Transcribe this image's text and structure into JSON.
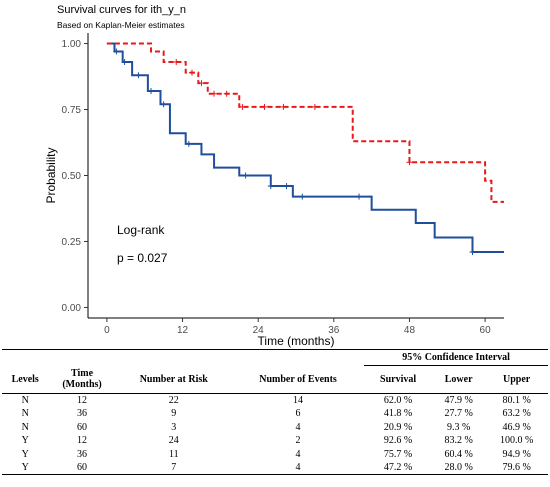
{
  "chart_data": {
    "type": "line",
    "title": "Survival curves for ith_y_n",
    "subtitle": "Based on Kaplan-Meier estimates",
    "xlabel": "Time (months)",
    "ylabel": "Probability",
    "xlim": [
      -3,
      63
    ],
    "ylim": [
      -0.04,
      1.04
    ],
    "xticks": [
      0,
      12,
      24,
      36,
      48,
      60
    ],
    "yticks": [
      0.0,
      0.25,
      0.5,
      0.75,
      1.0
    ],
    "ytick_labels": [
      "0.00",
      "0.25",
      "0.50",
      "0.75",
      "1.00"
    ],
    "grid": false,
    "annotations": [
      "Log-rank",
      "p = 0.027"
    ],
    "series": [
      {
        "color": "#1f4e9c",
        "style": "solid",
        "steps": [
          [
            0,
            1.0
          ],
          [
            1.2,
            0.97
          ],
          [
            2.5,
            0.93
          ],
          [
            4,
            0.88
          ],
          [
            6.5,
            0.82
          ],
          [
            8.5,
            0.77
          ],
          [
            10,
            0.66
          ],
          [
            12.5,
            0.62
          ],
          [
            15,
            0.58
          ],
          [
            17,
            0.53
          ],
          [
            21,
            0.5
          ],
          [
            26,
            0.46
          ],
          [
            29.5,
            0.42
          ],
          [
            42,
            0.37
          ],
          [
            49,
            0.32
          ],
          [
            52,
            0.265
          ],
          [
            58,
            0.21
          ],
          [
            63,
            0.21
          ]
        ],
        "censored": [
          [
            1.5,
            0.97
          ],
          [
            2.8,
            0.93
          ],
          [
            5,
            0.88
          ],
          [
            7,
            0.82
          ],
          [
            9,
            0.77
          ],
          [
            13,
            0.62
          ],
          [
            22,
            0.5
          ],
          [
            26,
            0.46
          ],
          [
            28.5,
            0.46
          ],
          [
            31,
            0.42
          ],
          [
            40,
            0.42
          ],
          [
            58,
            0.21
          ]
        ]
      },
      {
        "color": "#e8191b",
        "style": "dashed",
        "steps": [
          [
            0,
            1.0
          ],
          [
            7,
            0.97
          ],
          [
            9,
            0.93
          ],
          [
            12.5,
            0.89
          ],
          [
            14.5,
            0.85
          ],
          [
            16,
            0.81
          ],
          [
            20,
            0.81
          ],
          [
            21,
            0.76
          ],
          [
            33,
            0.76
          ],
          [
            39,
            0.63
          ],
          [
            48,
            0.55
          ],
          [
            60,
            0.48
          ],
          [
            61,
            0.4
          ],
          [
            63,
            0.4
          ]
        ],
        "censored": [
          [
            11,
            0.93
          ],
          [
            13.5,
            0.89
          ],
          [
            15,
            0.85
          ],
          [
            17,
            0.81
          ],
          [
            19,
            0.81
          ],
          [
            21.5,
            0.76
          ],
          [
            25,
            0.76
          ],
          [
            28,
            0.76
          ],
          [
            33,
            0.76
          ],
          [
            48,
            0.55
          ]
        ]
      }
    ]
  },
  "table": {
    "ci_header": "95% Confidence Interval",
    "headers": [
      "Levels",
      "Time\n(Months)",
      "Number at Risk",
      "Number of Events",
      "Survival",
      "Lower",
      "Upper"
    ],
    "rows": [
      [
        "N",
        "12",
        "22",
        "14",
        "62.0 %",
        "47.9 %",
        "80.1 %"
      ],
      [
        "N",
        "36",
        "9",
        "6",
        "41.8 %",
        "27.7 %",
        "63.2 %"
      ],
      [
        "N",
        "60",
        "3",
        "4",
        "20.9 %",
        "9.3 %",
        "46.9 %"
      ],
      [
        "Y",
        "12",
        "24",
        "2",
        "92.6 %",
        "83.2 %",
        "100.0 %"
      ],
      [
        "Y",
        "36",
        "11",
        "4",
        "75.7 %",
        "60.4 %",
        "94.9 %"
      ],
      [
        "Y",
        "60",
        "7",
        "4",
        "47.2 %",
        "28.0 %",
        "79.6 %"
      ]
    ]
  }
}
